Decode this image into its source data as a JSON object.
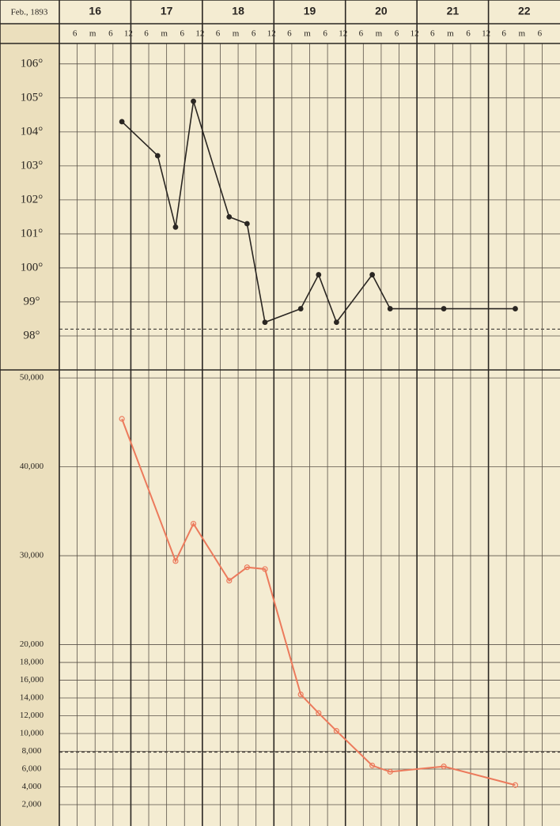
{
  "chart_data": [
    {
      "type": "line",
      "x_header_label": "Feb., 1893",
      "categories": [
        "16",
        "17",
        "18",
        "19",
        "20",
        "21",
        "22"
      ],
      "xlim": [
        0,
        168
      ],
      "xticks": [
        6,
        {
          "value": 12,
          "label": "m"
        },
        {
          "value": 18,
          "label": "6"
        },
        {
          "value": 24,
          "label": "12"
        },
        {
          "value": 30,
          "label": "6"
        },
        {
          "value": 36,
          "label": "m"
        },
        {
          "value": 42,
          "label": "6"
        },
        {
          "value": 48,
          "label": "12"
        },
        {
          "value": 54,
          "label": "6"
        },
        {
          "value": 60,
          "label": "m"
        },
        {
          "value": 66,
          "label": "6"
        },
        {
          "value": 72,
          "label": "12"
        },
        {
          "value": 78,
          "label": "6"
        },
        {
          "value": 84,
          "label": "m"
        },
        {
          "value": 90,
          "label": "6"
        },
        {
          "value": 96,
          "label": "12"
        },
        {
          "value": 102,
          "label": "6"
        },
        {
          "value": 108,
          "label": "m"
        },
        {
          "value": 114,
          "label": "6"
        },
        {
          "value": 120,
          "label": "12"
        },
        {
          "value": 126,
          "label": "6"
        },
        {
          "value": 132,
          "label": "m"
        },
        {
          "value": 138,
          "label": "6"
        },
        {
          "value": 144,
          "label": "12"
        },
        {
          "value": 150,
          "label": "6"
        },
        {
          "value": 156,
          "label": "m"
        },
        {
          "value": 162,
          "label": "6"
        }
      ],
      "x": [
        21,
        33,
        39,
        45,
        57,
        63,
        69,
        81,
        87,
        93,
        105,
        111,
        129,
        153
      ],
      "values": [
        104.3,
        103.3,
        101.2,
        104.9,
        101.5,
        101.3,
        98.4,
        98.8,
        99.8,
        98.4,
        99.8,
        98.8,
        98.8,
        98.8
      ],
      "color": "#2a2622",
      "ylim": [
        97,
        106.6
      ],
      "yticks": [
        {
          "value": 98,
          "label": "98°"
        },
        {
          "value": 99,
          "label": "99°"
        },
        {
          "value": 100,
          "label": "100°"
        },
        {
          "value": 101,
          "label": "101°"
        },
        {
          "value": 102,
          "label": "102°"
        },
        {
          "value": 103,
          "label": "103°"
        },
        {
          "value": 104,
          "label": "104°"
        },
        {
          "value": 105,
          "label": "105°"
        },
        {
          "value": 106,
          "label": "106°"
        }
      ],
      "reference_line": 98.2,
      "grid": true
    },
    {
      "type": "line",
      "xlim": [
        0,
        168
      ],
      "x": [
        21,
        39,
        45,
        57,
        63,
        69,
        81,
        87,
        93,
        105,
        111,
        129,
        153
      ],
      "values": [
        45400,
        29400,
        33600,
        27200,
        28700,
        28500,
        14400,
        12300,
        10300,
        6400,
        5700,
        6300,
        4200
      ],
      "color": "#ec7a5c",
      "ylim": [
        -400,
        50900
      ],
      "yticks": [
        {
          "value": 2000,
          "label": "2,000"
        },
        {
          "value": 4000,
          "label": "4,000"
        },
        {
          "value": 6000,
          "label": "6,000"
        },
        {
          "value": 8000,
          "label": "8,000"
        },
        {
          "value": 10000,
          "label": "10,000"
        },
        {
          "value": 12000,
          "label": "12,000"
        },
        {
          "value": 14000,
          "label": "14,000"
        },
        {
          "value": 16000,
          "label": "16,000"
        },
        {
          "value": 18000,
          "label": "18,000"
        },
        {
          "value": 20000,
          "label": "20,000"
        },
        {
          "value": 30000,
          "label": "30,000"
        },
        {
          "value": 40000,
          "label": "40,000"
        },
        {
          "value": 50000,
          "label": "50,000"
        }
      ],
      "reference_line": 7900,
      "grid": true
    }
  ]
}
